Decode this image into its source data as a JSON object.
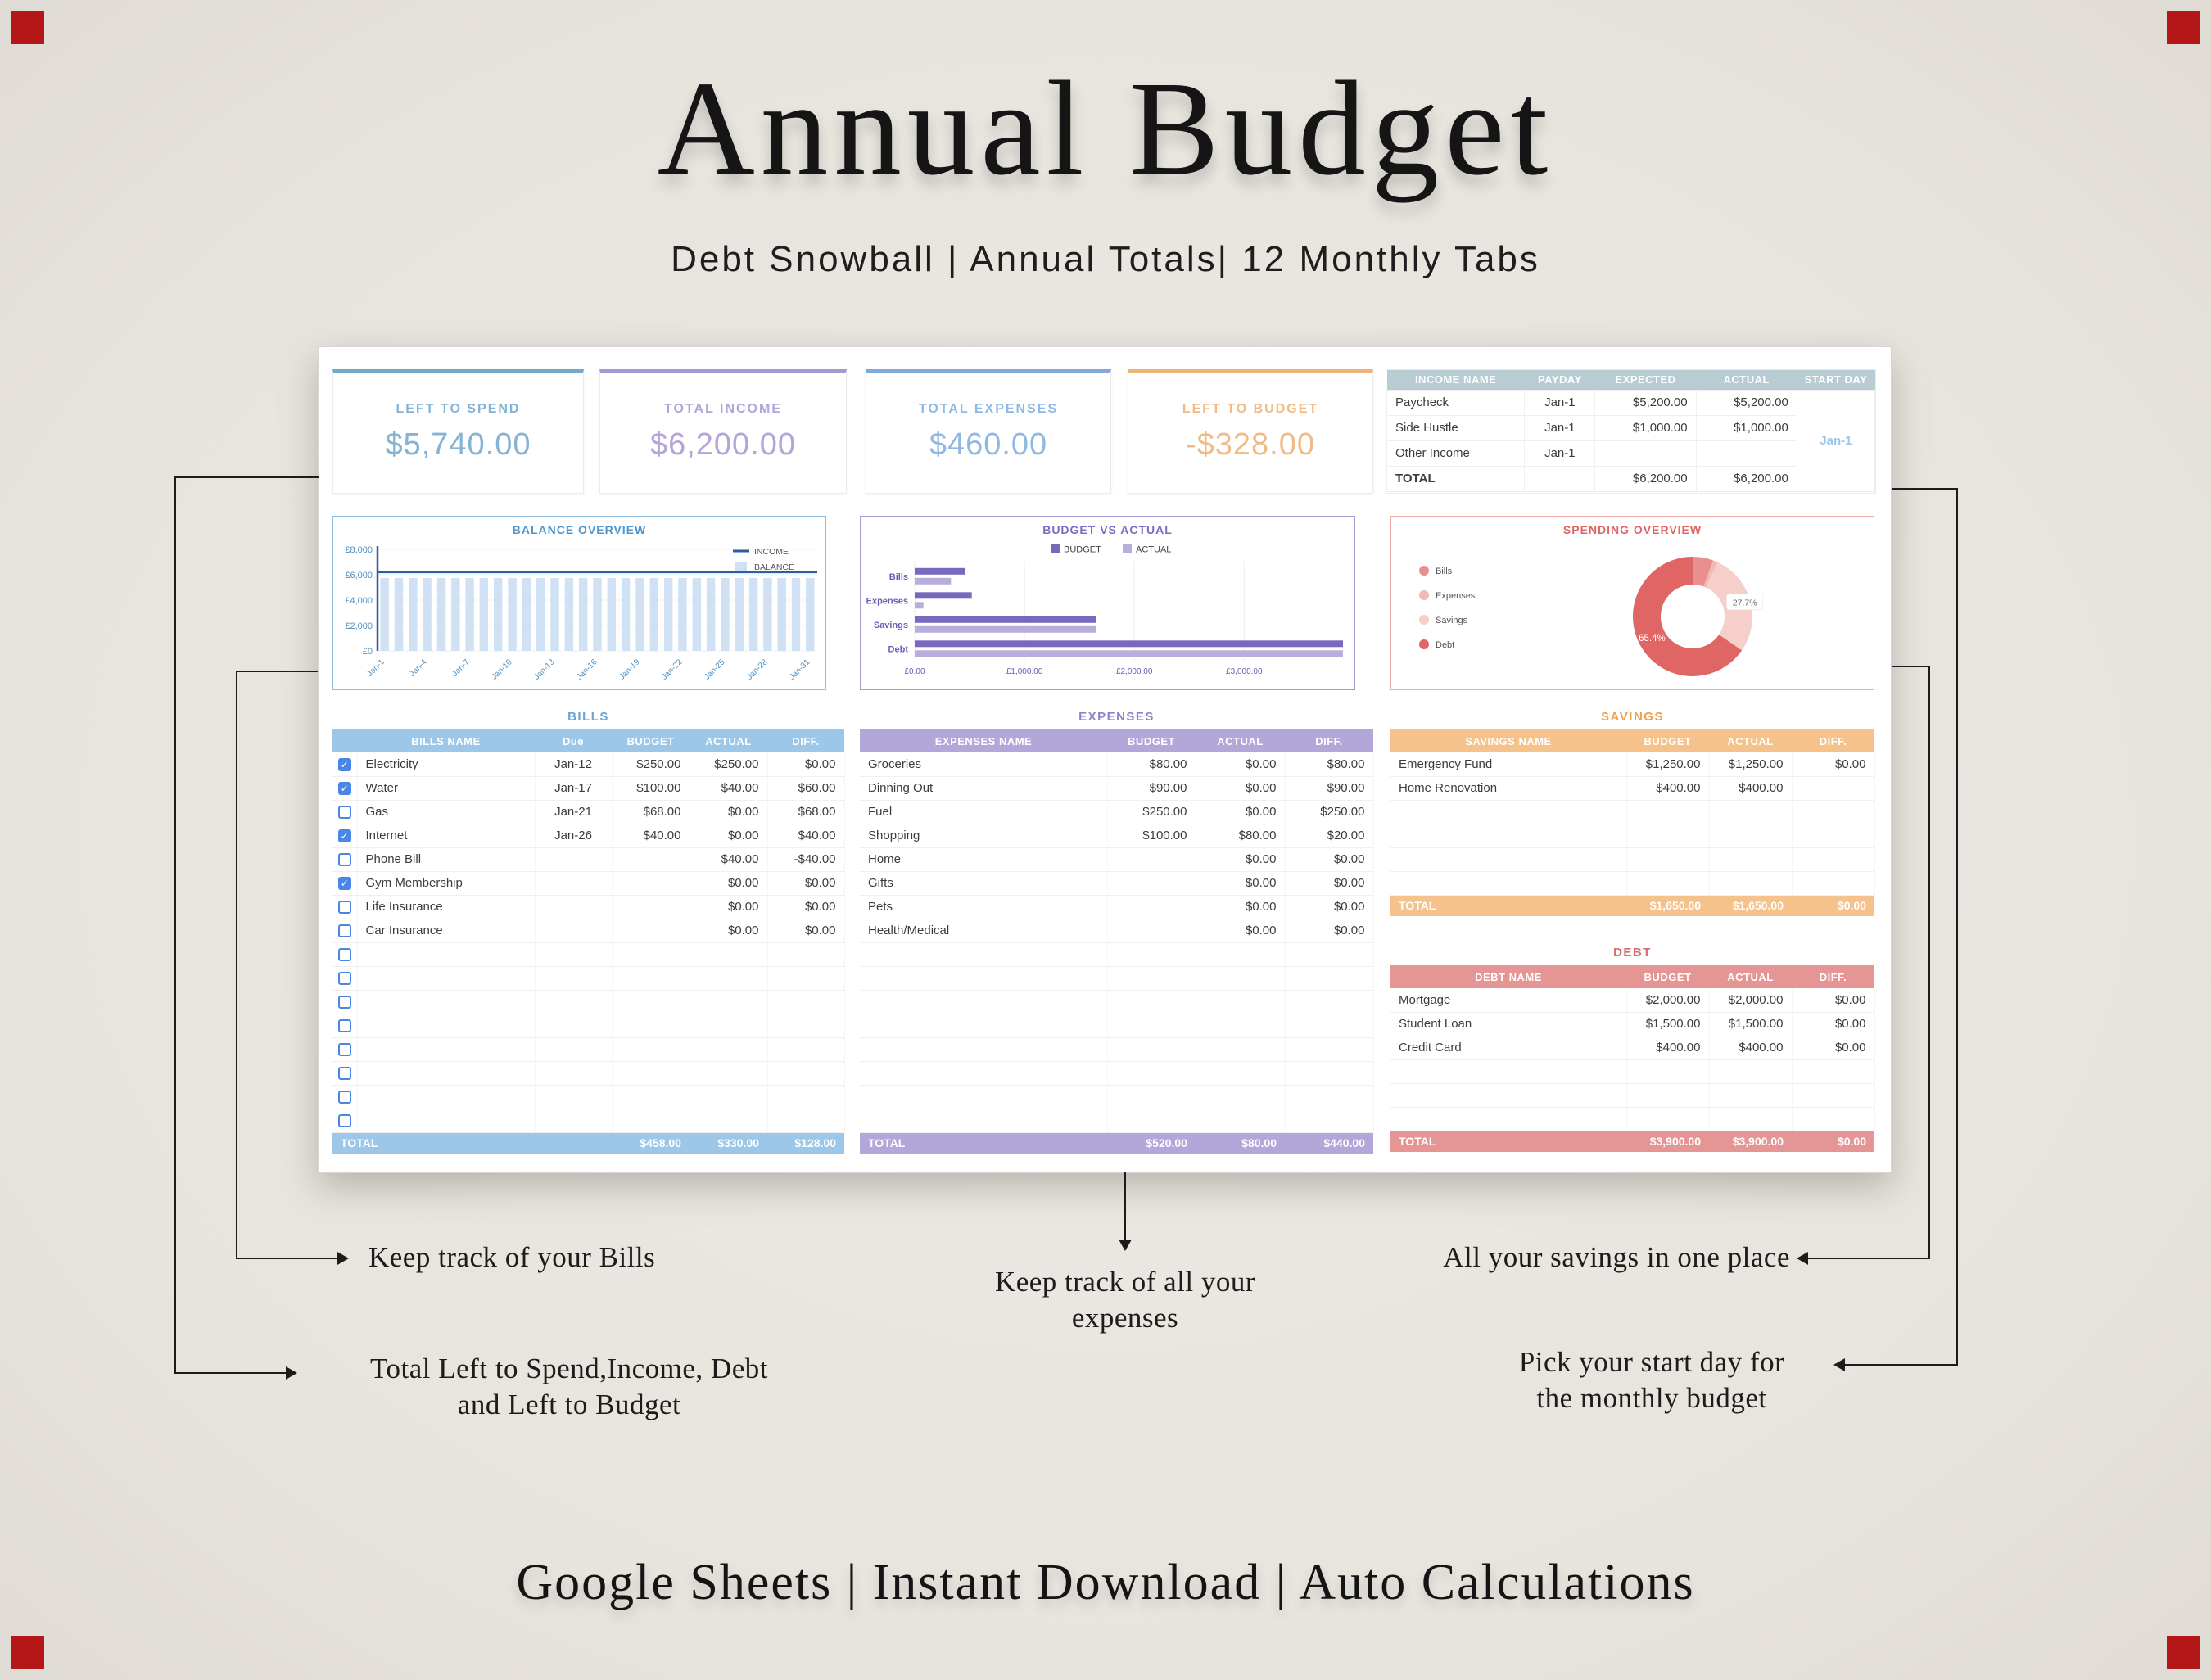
{
  "page": {
    "title": "Annual Budget",
    "subtitle": "Debt Snowball | Annual Totals| 12 Monthly Tabs",
    "footer": "Google Sheets | Instant Download | Auto Calculations"
  },
  "annotations": {
    "bills_note": "Keep track of your Bills",
    "totals_note_line1": "Total Left to Spend,Income, Debt",
    "totals_note_line2": "and Left to Budget",
    "expenses_note_line1": "Keep track of all your",
    "expenses_note_line2": "expenses",
    "savings_note": "All your savings in one place",
    "startday_note_line1": "Pick your start day for",
    "startday_note_line2": "the monthly budget"
  },
  "summary_cards": [
    {
      "id": "left-to-spend",
      "label": "LEFT TO SPEND",
      "value": "$5,740.00",
      "color": "#84b3d4",
      "accent": "#74a9cc"
    },
    {
      "id": "total-income",
      "label": "TOTAL INCOME",
      "value": "$6,200.00",
      "color": "#b3a5d9",
      "accent": "#a797d3"
    },
    {
      "id": "total-expenses",
      "label": "TOTAL EXPENSES",
      "value": "$460.00",
      "color": "#8fb9e4",
      "accent": "#7fabdc"
    },
    {
      "id": "left-to-budget",
      "label": "LEFT TO BUDGET",
      "value": "-$328.00",
      "color": "#f0bb86",
      "accent": "#edb275"
    }
  ],
  "income": {
    "headers": [
      "INCOME NAME",
      "PAYDAY",
      "EXPECTED",
      "ACTUAL",
      "START DAY"
    ],
    "header_bg": "#b7ccd3",
    "start_day": "Jan-1",
    "start_day_color": "#9fc4e8",
    "rows": [
      {
        "name": "Paycheck",
        "payday": "Jan-1",
        "expected": "$5,200.00",
        "actual": "$5,200.00"
      },
      {
        "name": "Side Hustle",
        "payday": "Jan-1",
        "expected": "$1,000.00",
        "actual": "$1,000.00"
      },
      {
        "name": "Other Income",
        "payday": "Jan-1",
        "expected": "",
        "actual": ""
      },
      {
        "name": "TOTAL",
        "payday": "",
        "expected": "$6,200.00",
        "actual": "$6,200.00"
      }
    ]
  },
  "bills": {
    "title": "BILLS",
    "headers": [
      "BILLS NAME",
      "Due",
      "BUDGET",
      "ACTUAL",
      "DIFF."
    ],
    "theme": {
      "header_bg": "#9cc7e8",
      "title_color": "#68a6d8",
      "checkbox_color": "#4a86e8"
    },
    "rows": [
      {
        "checked": true,
        "name": "Electricity",
        "due": "Jan-12",
        "budget": "$250.00",
        "actual": "$250.00",
        "diff": "$0.00"
      },
      {
        "checked": true,
        "name": "Water",
        "due": "Jan-17",
        "budget": "$100.00",
        "actual": "$40.00",
        "diff": "$60.00"
      },
      {
        "checked": false,
        "name": "Gas",
        "due": "Jan-21",
        "budget": "$68.00",
        "actual": "$0.00",
        "diff": "$68.00"
      },
      {
        "checked": true,
        "name": "Internet",
        "due": "Jan-26",
        "budget": "$40.00",
        "actual": "$0.00",
        "diff": "$40.00"
      },
      {
        "checked": false,
        "name": "Phone Bill",
        "due": "",
        "budget": "",
        "actual": "$40.00",
        "diff": "-$40.00",
        "diff_negative": true
      },
      {
        "checked": true,
        "name": "Gym Membership",
        "due": "",
        "budget": "",
        "actual": "$0.00",
        "diff": "$0.00"
      },
      {
        "checked": false,
        "name": "Life Insurance",
        "due": "",
        "budget": "",
        "actual": "$0.00",
        "diff": "$0.00"
      },
      {
        "checked": false,
        "name": "Car Insurance",
        "due": "",
        "budget": "",
        "actual": "$0.00",
        "diff": "$0.00"
      }
    ],
    "empty_rows": 8,
    "total": {
      "label": "TOTAL",
      "budget": "$458.00",
      "actual": "$330.00",
      "diff": "$128.00"
    }
  },
  "expenses": {
    "title": "EXPENSES",
    "headers": [
      "EXPENSES NAME",
      "BUDGET",
      "ACTUAL",
      "DIFF."
    ],
    "theme": {
      "header_bg": "#b3a6d9",
      "title_color": "#9181c9"
    },
    "rows": [
      {
        "name": "Groceries",
        "budget": "$80.00",
        "actual": "$0.00",
        "diff": "$80.00"
      },
      {
        "name": "Dinning Out",
        "budget": "$90.00",
        "actual": "$0.00",
        "diff": "$90.00"
      },
      {
        "name": "Fuel",
        "budget": "$250.00",
        "actual": "$0.00",
        "diff": "$250.00"
      },
      {
        "name": "Shopping",
        "budget": "$100.00",
        "actual": "$80.00",
        "diff": "$20.00"
      },
      {
        "name": "Home",
        "budget": "",
        "actual": "$0.00",
        "diff": "$0.00"
      },
      {
        "name": "Gifts",
        "budget": "",
        "actual": "$0.00",
        "diff": "$0.00"
      },
      {
        "name": "Pets",
        "budget": "",
        "actual": "$0.00",
        "diff": "$0.00"
      },
      {
        "name": "Health/Medical",
        "budget": "",
        "actual": "$0.00",
        "diff": "$0.00"
      }
    ],
    "empty_rows": 8,
    "total": {
      "label": "TOTAL",
      "budget": "$520.00",
      "actual": "$80.00",
      "diff": "$440.00"
    }
  },
  "savings": {
    "title": "SAVINGS",
    "headers": [
      "SAVINGS NAME",
      "BUDGET",
      "ACTUAL",
      "DIFF."
    ],
    "theme": {
      "header_bg": "#f6c28c",
      "title_color": "#eca14f"
    },
    "rows": [
      {
        "name": "Emergency Fund",
        "budget": "$1,250.00",
        "actual": "$1,250.00",
        "diff": "$0.00"
      },
      {
        "name": "Home Renovation",
        "budget": "$400.00",
        "actual": "$400.00",
        "diff": ""
      }
    ],
    "empty_rows": 4,
    "total": {
      "label": "TOTAL",
      "budget": "$1,650.00",
      "actual": "$1,650.00",
      "diff": "$0.00"
    }
  },
  "debt": {
    "title": "DEBT",
    "headers": [
      "DEBT NAME",
      "BUDGET",
      "ACTUAL",
      "DIFF."
    ],
    "theme": {
      "header_bg": "#e69595",
      "title_color": "#d96b6b"
    },
    "rows": [
      {
        "name": "Mortgage",
        "budget": "$2,000.00",
        "actual": "$2,000.00",
        "diff": "$0.00"
      },
      {
        "name": "Student Loan",
        "budget": "$1,500.00",
        "actual": "$1,500.00",
        "diff": "$0.00"
      },
      {
        "name": "Credit Card",
        "budget": "$400.00",
        "actual": "$400.00",
        "diff": "$0.00"
      }
    ],
    "empty_rows": 3,
    "total": {
      "label": "TOTAL",
      "budget": "$3,900.00",
      "actual": "$3,900.00",
      "diff": "$0.00"
    }
  },
  "chart_data": [
    {
      "type": "bar",
      "title": "BALANCE OVERVIEW",
      "title_color": "#4f97ce",
      "border_color": "#8fc0e3",
      "legend": [
        "INCOME",
        "BALANCE"
      ],
      "n_points": 31,
      "x_tick_labels": [
        "Jan-1",
        "Jan-4",
        "Jan-7",
        "Jan-10",
        "Jan-13",
        "Jan-16",
        "Jan-19",
        "Jan-22",
        "Jan-25",
        "Jan-28",
        "Jan-31"
      ],
      "series": [
        {
          "name": "INCOME",
          "style": "line",
          "color": "#2d5f9e",
          "constant_value": 6200
        },
        {
          "name": "BALANCE",
          "style": "bar",
          "color": "#cfe1f3",
          "constant_value": 5740
        }
      ],
      "ylim": [
        0,
        8000
      ],
      "y_tick_values": [
        0,
        2000,
        4000,
        6000,
        8000
      ],
      "y_tick_labels": [
        "£0",
        "£2,000",
        "£4,000",
        "£6,000",
        "£8,000"
      ]
    },
    {
      "type": "bar",
      "orientation": "horizontal",
      "title": "BUDGET VS ACTUAL",
      "title_color": "#7e6bc4",
      "border_color": "#a99ad6",
      "categories": [
        "Bills",
        "Expenses",
        "Savings",
        "Debt"
      ],
      "series": [
        {
          "name": "BUDGET",
          "color": "#7a68c0",
          "values": [
            458,
            520,
            1650,
            3900
          ]
        },
        {
          "name": "ACTUAL",
          "color": "#b9aedb",
          "values": [
            330,
            80,
            1650,
            3900
          ]
        }
      ],
      "x_tick_values": [
        0,
        1000,
        2000,
        3000
      ],
      "x_tick_labels": [
        "£0.00",
        "£1,000.00",
        "£2,000.00",
        "£3,000.00"
      ],
      "xlim": [
        0,
        3900
      ]
    },
    {
      "type": "pie",
      "donut": true,
      "title": "SPENDING OVERVIEW",
      "title_color": "#e06666",
      "border_color": "#eba9a9",
      "slices": [
        {
          "label": "Bills",
          "pct": 5.6,
          "color": "#e89090"
        },
        {
          "label": "Expenses",
          "pct": 1.3,
          "color": "#f2b9b9"
        },
        {
          "label": "Savings",
          "pct": 27.7,
          "color": "#f6cfca"
        },
        {
          "label": "Debt",
          "pct": 65.4,
          "color": "#e06666"
        }
      ],
      "data_labels": [
        {
          "text": "65.4%",
          "slice": "Debt",
          "style": "inside-white"
        },
        {
          "text": "27.7%",
          "slice": "Savings",
          "style": "callout"
        }
      ]
    }
  ]
}
